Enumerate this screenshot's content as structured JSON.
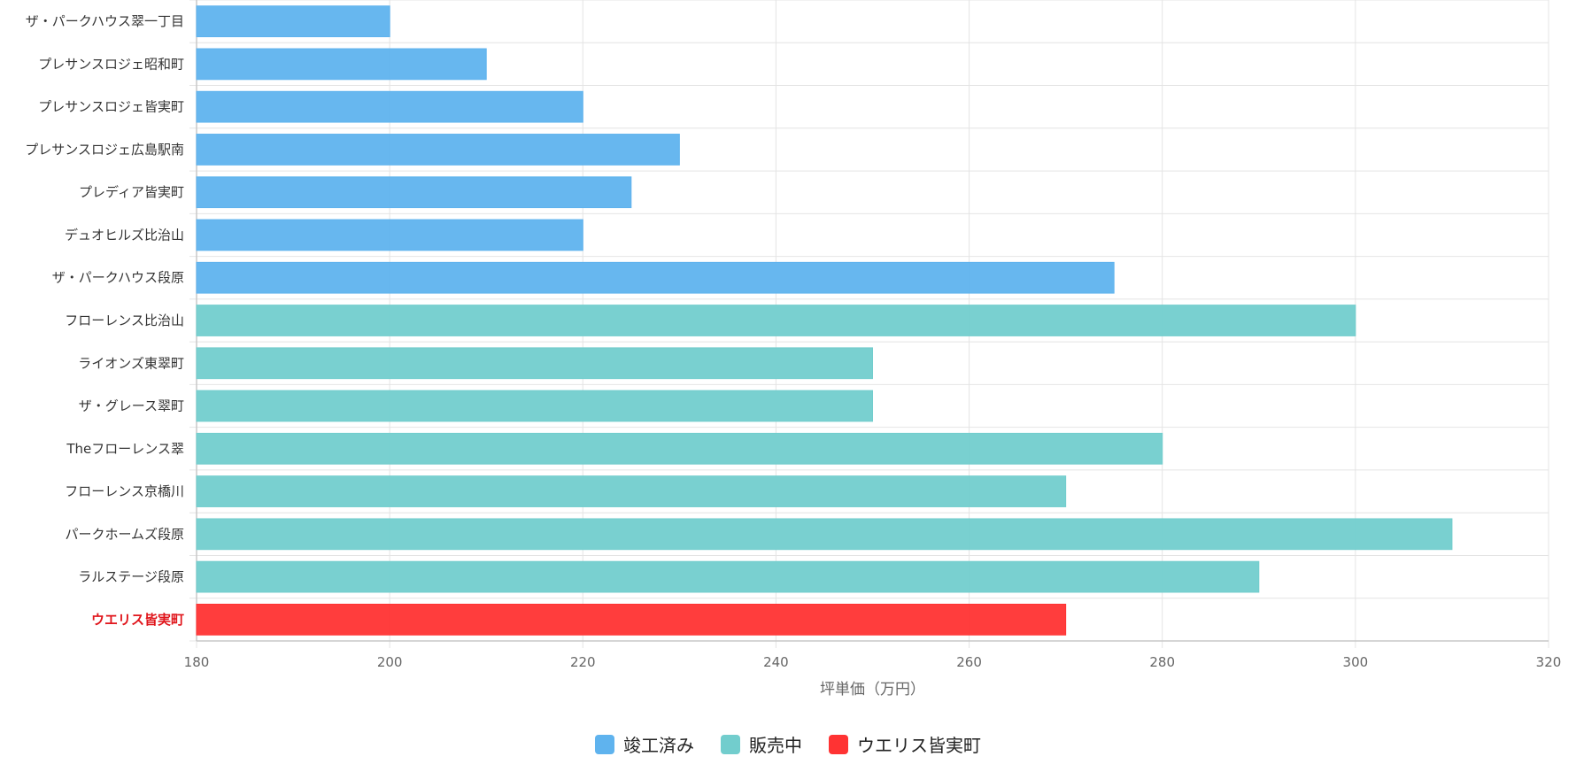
{
  "chart_data": {
    "type": "bar",
    "orientation": "horizontal",
    "categories": [
      "ザ・パークハウス翠一丁目",
      "プレサンスロジェ昭和町",
      "プレサンスロジェ皆実町",
      "プレサンスロジェ広島駅南",
      "プレディア皆実町",
      "デュオヒルズ比治山",
      "ザ・パークハウス段原",
      "フローレンス比治山",
      "ライオンズ東翠町",
      "ザ・グレース翠町",
      "Theフローレンス翠",
      "フローレンス京橋川",
      "パークホームズ段原",
      "ラルステージ段原",
      "ウエリス皆実町"
    ],
    "values": [
      200,
      210,
      220,
      230,
      225,
      220,
      275,
      300,
      250,
      250,
      280,
      270,
      310,
      290,
      270
    ],
    "groups": [
      "completed",
      "completed",
      "completed",
      "completed",
      "completed",
      "completed",
      "completed",
      "selling",
      "selling",
      "selling",
      "selling",
      "selling",
      "selling",
      "selling",
      "target"
    ],
    "highlight_category": "ウエリス皆実町",
    "xlabel": "坪単価（万円）",
    "ylabel": "",
    "title": "",
    "xlim": [
      180,
      320
    ],
    "xticks": [
      180,
      200,
      220,
      240,
      260,
      280,
      300,
      320
    ],
    "grid": true,
    "legend_position": "bottom-center",
    "legend": [
      {
        "key": "completed",
        "label": "竣工済み",
        "color": "#5fb3ee"
      },
      {
        "key": "selling",
        "label": "販売中",
        "color": "#72cdcd"
      },
      {
        "key": "target",
        "label": "ウエリス皆実町",
        "color": "#ff3333"
      }
    ],
    "highlight_label_color": "#e0151b"
  }
}
